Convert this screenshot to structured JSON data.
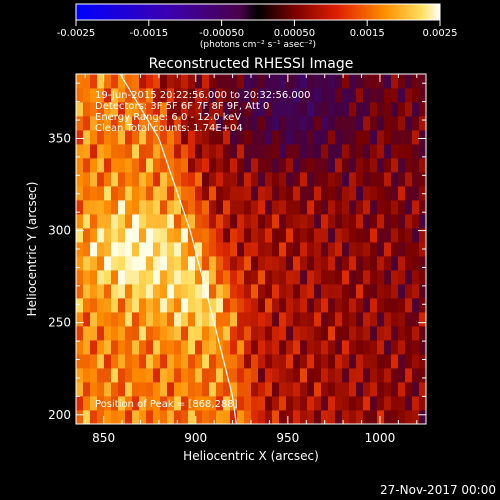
{
  "chart_data": {
    "type": "heatmap",
    "title": "Reconstructed RHESSI Image",
    "xlabel": "Heliocentric X (arcsec)",
    "ylabel": "Heliocentric Y (arcsec)",
    "xlim": [
      835,
      1025
    ],
    "ylim": [
      195,
      385
    ],
    "xticks": [
      850,
      900,
      950,
      1000
    ],
    "yticks": [
      200,
      250,
      300,
      350
    ],
    "colorbar": {
      "min": -0.0025,
      "max": 0.0025,
      "tick_labels": [
        "-0.0025",
        "-0.0015",
        "-0.00050",
        "0.00050",
        "0.0015",
        "0.0025"
      ],
      "tick_values": [
        -0.0025,
        -0.0015,
        -0.0005,
        0.0005,
        0.0015,
        0.0025
      ],
      "units": "(photons cm⁻² s⁻¹ asec⁻²)"
    },
    "annotations": [
      "19-Jun-2015 20:22:56.000 to 20:32:56.000",
      "Detectors: 3F 5F 6F 7F 8F 9F, Att 0",
      "Energy Range: 6.0 - 12.0 keV",
      "Clean    Total counts: 1.74E+04"
    ],
    "peak_label": "Position of Peak = [868,288]",
    "peak": [
      868,
      288
    ],
    "limb_curve": [
      [
        859,
        385
      ],
      [
        880,
        350
      ],
      [
        897,
        300
      ],
      [
        910,
        250
      ],
      [
        920,
        210
      ],
      [
        922,
        195
      ]
    ],
    "colors": {
      "limb": "#ffffff",
      "background": "#000000"
    }
  },
  "footer": {
    "date": "27-Nov-2017 00:00"
  }
}
